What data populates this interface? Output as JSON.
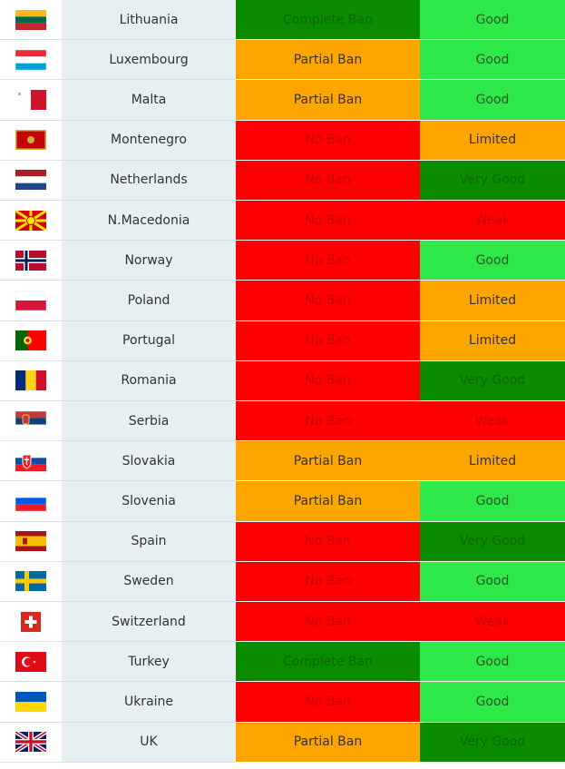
{
  "colors": {
    "darkgreen": "#0b8c00",
    "lightgreen": "#2ee84a",
    "orange": "#ffa500",
    "red": "#ff0000"
  },
  "rows": [
    {
      "country": "Lithuania",
      "flag": "flag-lithuania",
      "ban": "Complete Ban",
      "ban_color": "darkgreen",
      "rating": "Good",
      "rating_color": "lightgreen"
    },
    {
      "country": "Luxembourg",
      "flag": "flag-luxembourg",
      "ban": "Partial Ban",
      "ban_color": "orange",
      "rating": "Good",
      "rating_color": "lightgreen"
    },
    {
      "country": "Malta",
      "flag": "flag-malta",
      "ban": "Partial Ban",
      "ban_color": "orange",
      "rating": "Good",
      "rating_color": "lightgreen"
    },
    {
      "country": "Montenegro",
      "flag": "flag-montenegro",
      "ban": "No Ban",
      "ban_color": "red",
      "rating": "Limited",
      "rating_color": "orange"
    },
    {
      "country": "Netherlands",
      "flag": "flag-netherlands",
      "ban": "No Ban",
      "ban_color": "red",
      "rating": "Very Good",
      "rating_color": "darkgreen"
    },
    {
      "country": "N.Macedonia",
      "flag": "flag-north-macedonia",
      "ban": "No Ban",
      "ban_color": "red",
      "rating": "Weak",
      "rating_color": "red"
    },
    {
      "country": "Norway",
      "flag": "flag-norway",
      "ban": "No Ban",
      "ban_color": "red",
      "rating": "Good",
      "rating_color": "lightgreen"
    },
    {
      "country": "Poland",
      "flag": "flag-poland",
      "ban": "No Ban",
      "ban_color": "red",
      "rating": "Limited",
      "rating_color": "orange"
    },
    {
      "country": "Portugal",
      "flag": "flag-portugal",
      "ban": "No Ban",
      "ban_color": "red",
      "rating": "Limited",
      "rating_color": "orange"
    },
    {
      "country": "Romania",
      "flag": "flag-romania",
      "ban": "No Ban",
      "ban_color": "red",
      "rating": "Very Good",
      "rating_color": "darkgreen"
    },
    {
      "country": "Serbia",
      "flag": "flag-serbia",
      "ban": "No Ban",
      "ban_color": "red",
      "rating": "Weak",
      "rating_color": "red"
    },
    {
      "country": "Slovakia",
      "flag": "flag-slovakia",
      "ban": "Partial Ban",
      "ban_color": "orange",
      "rating": "Limited",
      "rating_color": "orange"
    },
    {
      "country": "Slovenia",
      "flag": "flag-slovenia",
      "ban": "Partial Ban",
      "ban_color": "orange",
      "rating": "Good",
      "rating_color": "lightgreen"
    },
    {
      "country": "Spain",
      "flag": "flag-spain",
      "ban": "No Ban",
      "ban_color": "red",
      "rating": "Very Good",
      "rating_color": "darkgreen"
    },
    {
      "country": "Sweden",
      "flag": "flag-sweden",
      "ban": "No Ban",
      "ban_color": "red",
      "rating": "Good",
      "rating_color": "lightgreen"
    },
    {
      "country": "Switzerland",
      "flag": "flag-switzerland",
      "ban": "No Ban",
      "ban_color": "red",
      "rating": "Weak",
      "rating_color": "red"
    },
    {
      "country": "Turkey",
      "flag": "flag-turkey",
      "ban": "Complete Ban",
      "ban_color": "darkgreen",
      "rating": "Good",
      "rating_color": "lightgreen"
    },
    {
      "country": "Ukraine",
      "flag": "flag-ukraine",
      "ban": "No Ban",
      "ban_color": "red",
      "rating": "Good",
      "rating_color": "lightgreen"
    },
    {
      "country": "UK",
      "flag": "flag-uk",
      "ban": "Partial Ban",
      "ban_color": "orange",
      "rating": "Very Good",
      "rating_color": "darkgreen"
    }
  ]
}
